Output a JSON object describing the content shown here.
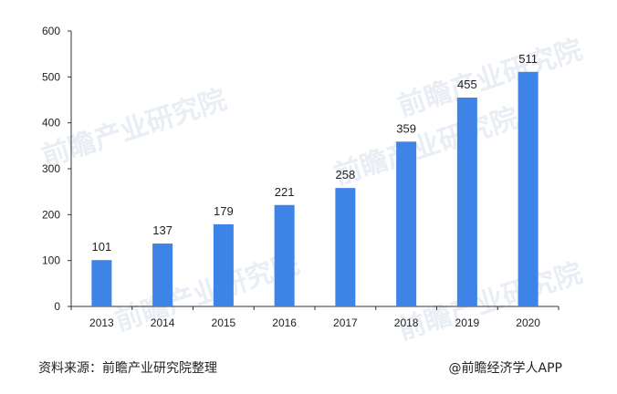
{
  "chart_data": {
    "type": "bar",
    "categories": [
      "2013",
      "2014",
      "2015",
      "2016",
      "2017",
      "2018",
      "2019",
      "2020"
    ],
    "values": [
      101,
      137,
      179,
      221,
      258,
      359,
      455,
      511
    ],
    "ylim": [
      0,
      600
    ],
    "yticks": [
      0,
      100,
      200,
      300,
      400,
      500,
      600
    ],
    "grid": false,
    "bar_color": "#3d84e6",
    "data_labels": true
  },
  "footer": {
    "source": "资料来源：前瞻产业研究院整理",
    "credit": "@前瞻经济学人APP"
  },
  "watermark": {
    "text": "前瞻产业研究院"
  }
}
